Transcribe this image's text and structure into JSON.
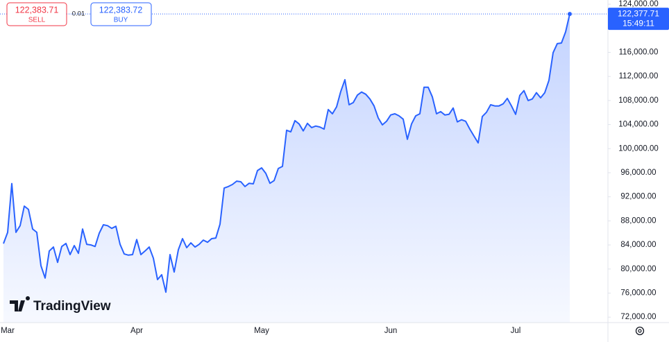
{
  "chart_data": {
    "type": "area",
    "brand": "TradingView",
    "sell": {
      "price": "122,383.71",
      "label": "SELL"
    },
    "spread": "0.01",
    "buy": {
      "price": "122,383.72",
      "label": "BUY"
    },
    "price_line": {
      "value": 122377.71,
      "label": "122,377.71",
      "time": "15:49:11"
    },
    "color": "#2962ff",
    "grid": false,
    "ylim": [
      71100,
      124700
    ],
    "yticks": [
      {
        "value": 72000,
        "label": "72,000.00"
      },
      {
        "value": 76000,
        "label": "76,000.00"
      },
      {
        "value": 80000,
        "label": "80,000.00"
      },
      {
        "value": 84000,
        "label": "84,000.00"
      },
      {
        "value": 88000,
        "label": "88,000.00"
      },
      {
        "value": 92000,
        "label": "92,000.00"
      },
      {
        "value": 96000,
        "label": "96,000.00"
      },
      {
        "value": 100000,
        "label": "100,000.00"
      },
      {
        "value": 104000,
        "label": "104,000.00"
      },
      {
        "value": 108000,
        "label": "108,000.00"
      },
      {
        "value": 112000,
        "label": "112,000.00"
      },
      {
        "value": 116000,
        "label": "116,000.00"
      },
      {
        "value": 124000,
        "label": "124,000.00"
      }
    ],
    "categories": [
      null,
      "Mar",
      null,
      null,
      null,
      null,
      null,
      null,
      null,
      null,
      null,
      null,
      null,
      null,
      null,
      null,
      null,
      null,
      null,
      null,
      null,
      null,
      null,
      null,
      null,
      null,
      null,
      null,
      null,
      null,
      null,
      null,
      "Apr",
      null,
      null,
      null,
      null,
      null,
      null,
      null,
      null,
      null,
      null,
      null,
      null,
      null,
      null,
      null,
      null,
      null,
      null,
      null,
      null,
      null,
      null,
      null,
      null,
      null,
      null,
      null,
      null,
      null,
      "May",
      null,
      null,
      null,
      null,
      null,
      null,
      null,
      null,
      null,
      null,
      null,
      null,
      null,
      null,
      null,
      null,
      null,
      null,
      null,
      null,
      null,
      null,
      null,
      null,
      null,
      null,
      null,
      null,
      null,
      null,
      "Jun",
      null,
      null,
      null,
      null,
      null,
      null,
      null,
      null,
      null,
      null,
      null,
      null,
      null,
      null,
      null,
      null,
      null,
      null,
      null,
      null,
      null,
      null,
      null,
      null,
      null,
      null,
      null,
      null,
      null,
      "Jul",
      null,
      null,
      null,
      null,
      null,
      null,
      null,
      null,
      null,
      null,
      null,
      null,
      null
    ],
    "values": [
      84230,
      86080,
      94200,
      86100,
      87200,
      90450,
      89900,
      86650,
      86100,
      80550,
      78500,
      83000,
      83650,
      81100,
      83750,
      84250,
      82400,
      83900,
      82600,
      86650,
      84100,
      84000,
      83750,
      85950,
      87350,
      87200,
      86750,
      87100,
      84100,
      82500,
      82300,
      82400,
      84900,
      82400,
      83000,
      83650,
      81800,
      78250,
      79050,
      76150,
      82400,
      79500,
      83200,
      85050,
      83550,
      84350,
      83650,
      84100,
      84800,
      84450,
      85050,
      85150,
      87450,
      93450,
      93700,
      94050,
      94600,
      94500,
      93700,
      94250,
      94150,
      96350,
      96800,
      95900,
      94250,
      94700,
      96700,
      97050,
      103050,
      102800,
      104650,
      104100,
      102950,
      104200,
      103500,
      103750,
      103600,
      103250,
      106500,
      105800,
      106950,
      109500,
      111450,
      107300,
      107650,
      108900,
      109400,
      109050,
      108250,
      107100,
      105100,
      103950,
      104550,
      105600,
      105800,
      105450,
      104900,
      101550,
      104100,
      105450,
      105800,
      110200,
      110200,
      108600,
      105800,
      106150,
      105600,
      105700,
      106750,
      104450,
      104800,
      104550,
      103250,
      102100,
      100950,
      105350,
      106050,
      107300,
      107100,
      107100,
      107450,
      108350,
      107100,
      105700,
      108850,
      109650,
      108000,
      108250,
      109300,
      108450,
      109300,
      111350,
      115950,
      117450,
      117550,
      119400,
      122377.71
    ]
  }
}
